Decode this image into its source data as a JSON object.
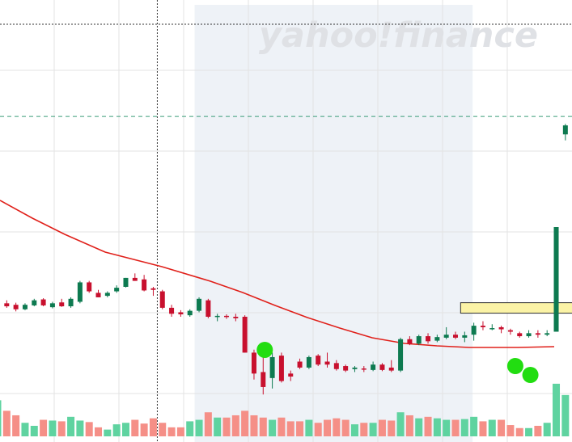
{
  "watermark": "yahoo!finance",
  "colors": {
    "up": "#0d7a50",
    "down": "#c8102e",
    "ma_line": "#e0201a",
    "vol_up": "#5fd3a0",
    "vol_down": "#f58f87",
    "shade": "#eef2f7",
    "grid": "#e3e3e3",
    "crosshair": "#333333",
    "price_line": "#3a9c78",
    "highlight_fill": "#fbf3a6",
    "highlight_stroke": "#2e2e2e",
    "marker": "#22dd11"
  },
  "chart_data": {
    "type": "candlestick",
    "title": "",
    "xlabel": "",
    "ylabel": "",
    "ylim": [
      0,
      100
    ],
    "volume_ylim": [
      0,
      100
    ],
    "grid": true,
    "legend": "none",
    "shaded_range_sessions": [
      22,
      52
    ],
    "crosshair_session": 17,
    "last_price_level": 77,
    "highlight_zone": {
      "sessions": [
        51,
        62
      ],
      "low": 11.2,
      "high": 14.7
    },
    "marker_sessions": [
      29,
      56,
      58
    ],
    "sessions": [
      {
        "o": 13.0,
        "h": 14.5,
        "l": 10.5,
        "c": 14.2,
        "v": 48
      },
      {
        "o": 14.5,
        "h": 15.5,
        "l": 13.0,
        "c": 13.5,
        "v": 34
      },
      {
        "o": 14.0,
        "h": 14.7,
        "l": 11.8,
        "c": 12.5,
        "v": 28
      },
      {
        "o": 12.5,
        "h": 14.5,
        "l": 12.2,
        "c": 14.0,
        "v": 18
      },
      {
        "o": 13.8,
        "h": 16.0,
        "l": 13.5,
        "c": 15.5,
        "v": 14
      },
      {
        "o": 15.8,
        "h": 16.2,
        "l": 13.5,
        "c": 13.8,
        "v": 22
      },
      {
        "o": 13.2,
        "h": 15.0,
        "l": 12.8,
        "c": 14.5,
        "v": 21
      },
      {
        "o": 14.8,
        "h": 16.0,
        "l": 13.3,
        "c": 13.5,
        "v": 20
      },
      {
        "o": 13.5,
        "h": 16.5,
        "l": 13.0,
        "c": 16.0,
        "v": 26
      },
      {
        "o": 15.0,
        "h": 22.0,
        "l": 14.5,
        "c": 21.5,
        "v": 21
      },
      {
        "o": 21.5,
        "h": 22.0,
        "l": 18.0,
        "c": 18.5,
        "v": 19
      },
      {
        "o": 18.0,
        "h": 19.0,
        "l": 16.5,
        "c": 16.5,
        "v": 12
      },
      {
        "o": 17.0,
        "h": 18.5,
        "l": 16.5,
        "c": 18.0,
        "v": 9
      },
      {
        "o": 18.5,
        "h": 20.5,
        "l": 18.0,
        "c": 19.7,
        "v": 16
      },
      {
        "o": 20.0,
        "h": 23.0,
        "l": 19.8,
        "c": 23.0,
        "v": 18
      },
      {
        "o": 23.0,
        "h": 24.5,
        "l": 22.0,
        "c": 22.0,
        "v": 22
      },
      {
        "o": 22.5,
        "h": 24.0,
        "l": 18.5,
        "c": 18.8,
        "v": 17
      },
      {
        "o": 19.5,
        "h": 20.0,
        "l": 17.0,
        "c": 19.0,
        "v": 24
      },
      {
        "o": 18.5,
        "h": 19.0,
        "l": 12.5,
        "c": 13.0,
        "v": 18
      },
      {
        "o": 13.0,
        "h": 14.0,
        "l": 10.0,
        "c": 11.0,
        "v": 12
      },
      {
        "o": 11.5,
        "h": 12.2,
        "l": 10.0,
        "c": 10.8,
        "v": 12
      },
      {
        "o": 10.5,
        "h": 12.5,
        "l": 10.0,
        "c": 12.0,
        "v": 20
      },
      {
        "o": 12.0,
        "h": 16.5,
        "l": 11.5,
        "c": 16.0,
        "v": 22
      },
      {
        "o": 15.5,
        "h": 16.0,
        "l": 9.5,
        "c": 10.0,
        "v": 32
      },
      {
        "o": 10.0,
        "h": 11.0,
        "l": 8.5,
        "c": 10.3,
        "v": 25
      },
      {
        "o": 10.3,
        "h": 10.8,
        "l": 9.3,
        "c": 10.0,
        "v": 25
      },
      {
        "o": 10.0,
        "h": 11.0,
        "l": 8.5,
        "c": 9.5,
        "v": 28
      },
      {
        "o": 10.0,
        "h": 10.5,
        "l": -2.0,
        "c": -2.0,
        "v": 34
      },
      {
        "o": -2.0,
        "h": -1.0,
        "l": -11.0,
        "c": -9.0,
        "v": 28
      },
      {
        "o": -8.5,
        "h": -3.0,
        "l": -16.0,
        "c": -13.5,
        "v": 25
      },
      {
        "o": -10.5,
        "h": -2.0,
        "l": -14.0,
        "c": -3.5,
        "v": 22
      },
      {
        "o": -3.0,
        "h": -2.0,
        "l": -12.0,
        "c": -11.5,
        "v": 25
      },
      {
        "o": -9.0,
        "h": -8.0,
        "l": -11.5,
        "c": -10.0,
        "v": 20
      },
      {
        "o": -5.0,
        "h": -4.0,
        "l": -7.5,
        "c": -7.0,
        "v": 20
      },
      {
        "o": -7.0,
        "h": -3.0,
        "l": -7.5,
        "c": -3.5,
        "v": 22
      },
      {
        "o": -3.0,
        "h": -2.5,
        "l": -6.5,
        "c": -6.0,
        "v": 18
      },
      {
        "o": -5.0,
        "h": -2.0,
        "l": -7.0,
        "c": -6.0,
        "v": 22
      },
      {
        "o": -5.5,
        "h": -4.5,
        "l": -8.0,
        "c": -7.5,
        "v": 24
      },
      {
        "o": -6.5,
        "h": -6.0,
        "l": -8.5,
        "c": -8.0,
        "v": 22
      },
      {
        "o": -7.5,
        "h": -6.5,
        "l": -8.5,
        "c": -7.0,
        "v": 16
      },
      {
        "o": -7.3,
        "h": -6.5,
        "l": -8.5,
        "c": -7.6,
        "v": 18
      },
      {
        "o": -7.8,
        "h": -5.0,
        "l": -8.2,
        "c": -6.0,
        "v": 18
      },
      {
        "o": -6.0,
        "h": -5.5,
        "l": -8.2,
        "c": -7.8,
        "v": 22
      },
      {
        "o": -7.0,
        "h": -4.5,
        "l": -8.5,
        "c": -8.0,
        "v": 21
      },
      {
        "o": -8.0,
        "h": 3.0,
        "l": -8.5,
        "c": 2.5,
        "v": 32
      },
      {
        "o": 2.5,
        "h": 3.5,
        "l": 0.5,
        "c": 1.0,
        "v": 28
      },
      {
        "o": 1.0,
        "h": 4.0,
        "l": 0.5,
        "c": 3.5,
        "v": 24
      },
      {
        "o": 3.5,
        "h": 4.5,
        "l": 1.0,
        "c": 1.8,
        "v": 26
      },
      {
        "o": 2.0,
        "h": 4.0,
        "l": 1.5,
        "c": 3.2,
        "v": 24
      },
      {
        "o": 3.0,
        "h": 6.5,
        "l": 2.5,
        "c": 4.0,
        "v": 22
      },
      {
        "o": 4.0,
        "h": 5.0,
        "l": 2.5,
        "c": 3.0,
        "v": 22
      },
      {
        "o": 3.0,
        "h": 5.0,
        "l": 1.5,
        "c": 3.8,
        "v": 23
      },
      {
        "o": 4.0,
        "h": 8.0,
        "l": 2.0,
        "c": 7.0,
        "v": 26
      },
      {
        "o": 7.0,
        "h": 8.5,
        "l": 5.5,
        "c": 6.5,
        "v": 20
      },
      {
        "o": 6.0,
        "h": 7.5,
        "l": 5.5,
        "c": 6.2,
        "v": 22
      },
      {
        "o": 6.5,
        "h": 7.0,
        "l": 4.5,
        "c": 5.8,
        "v": 22
      },
      {
        "o": 5.5,
        "h": 6.0,
        "l": 4.0,
        "c": 5.0,
        "v": 15
      },
      {
        "o": 4.5,
        "h": 5.0,
        "l": 3.0,
        "c": 3.5,
        "v": 11
      },
      {
        "o": 3.5,
        "h": 5.5,
        "l": 3.0,
        "c": 4.5,
        "v": 11
      },
      {
        "o": 4.5,
        "h": 5.5,
        "l": 3.0,
        "c": 4.0,
        "v": 14
      },
      {
        "o": 4.0,
        "h": 5.5,
        "l": 3.5,
        "c": 4.5,
        "v": 18
      },
      {
        "o": 5.0,
        "h": 40.0,
        "l": 5.0,
        "c": 40.0,
        "v": 70
      },
      {
        "o": 71.0,
        "h": 74.5,
        "l": 69.0,
        "c": 74.0,
        "v": 55
      }
    ]
  }
}
